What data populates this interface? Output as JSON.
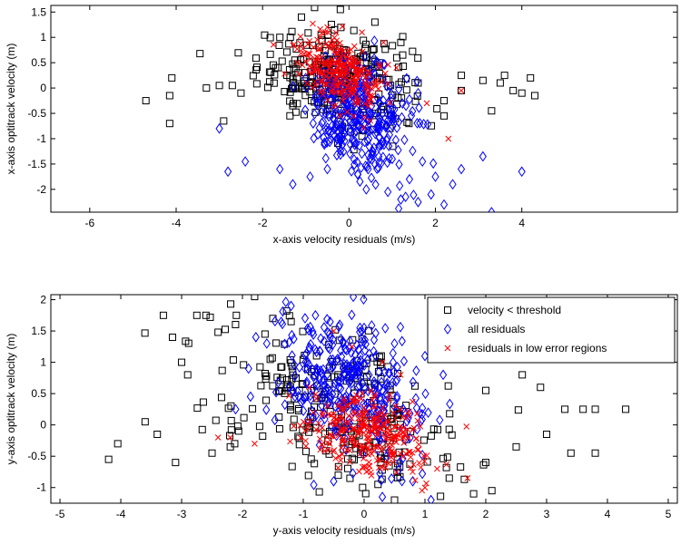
{
  "chart_data": [
    {
      "type": "scatter",
      "title": "",
      "xlabel": "x-axis velocity residuals (m/s)",
      "ylabel": "x-axis optitrack velocity (m)",
      "xlim": [
        -6.9,
        7.6
      ],
      "ylim": [
        -2.45,
        1.63
      ],
      "xticks": [
        -6,
        -4,
        -2,
        0,
        2,
        4
      ],
      "yticks": [
        -2,
        -1.5,
        -1,
        -0.5,
        0,
        0.5,
        1,
        1.5
      ],
      "grid": false,
      "legend": false,
      "series": [
        {
          "marker": "square",
          "color": "#000000",
          "cloud": {
            "cx": -0.3,
            "cy": 0.2,
            "sx": 0.9,
            "sy": 0.45,
            "slope": -0.1,
            "n": 280
          },
          "points": [
            [
              -4.7,
              -0.25
            ],
            [
              -4.1,
              0.2
            ],
            [
              -4.15,
              -0.15
            ],
            [
              -4.15,
              -0.7
            ],
            [
              -3.3,
              0.0
            ],
            [
              -3.0,
              0.05
            ],
            [
              -2.9,
              -0.65
            ],
            [
              -2.7,
              0.05
            ],
            [
              -2.5,
              -0.1
            ],
            [
              -1.6,
              1.0
            ],
            [
              -1.1,
              1.4
            ],
            [
              -0.2,
              1.55
            ],
            [
              0.6,
              1.3
            ],
            [
              1.2,
              0.9
            ],
            [
              1.6,
              0.1
            ],
            [
              2.2,
              -0.25
            ],
            [
              2.6,
              -0.05
            ],
            [
              3.1,
              0.15
            ],
            [
              3.3,
              -0.45
            ],
            [
              3.5,
              0.1
            ],
            [
              3.6,
              0.25
            ],
            [
              3.8,
              -0.05
            ],
            [
              4.0,
              -0.1
            ],
            [
              4.2,
              0.2
            ],
            [
              4.3,
              -0.15
            ],
            [
              2.2,
              -0.55
            ],
            [
              2.6,
              0.25
            ],
            [
              -1.3,
              -0.35
            ],
            [
              0.3,
              -0.95
            ]
          ]
        },
        {
          "marker": "diamond",
          "color": "#0000ff",
          "cloud": {
            "cx": 0.2,
            "cy": -0.55,
            "sx": 0.6,
            "sy": 0.55,
            "slope": -0.3,
            "n": 360
          },
          "points": [
            [
              -2.8,
              -1.65
            ],
            [
              -2.4,
              -1.45
            ],
            [
              -1.6,
              -1.6
            ],
            [
              -1.3,
              -1.9
            ],
            [
              -0.9,
              -1.75
            ],
            [
              -0.5,
              -1.6
            ],
            [
              0.2,
              -1.7
            ],
            [
              0.6,
              -1.5
            ],
            [
              0.9,
              -2.05
            ],
            [
              1.2,
              -2.2
            ],
            [
              1.6,
              -2.25
            ],
            [
              1.9,
              -2.1
            ],
            [
              2.2,
              -2.3
            ],
            [
              2.6,
              -1.6
            ],
            [
              3.1,
              -1.35
            ],
            [
              3.3,
              -2.45
            ],
            [
              4.0,
              -1.65
            ],
            [
              1.0,
              -1.4
            ],
            [
              1.4,
              -1.8
            ],
            [
              2.0,
              -1.75
            ],
            [
              2.4,
              -1.9
            ],
            [
              -3.0,
              -0.8
            ],
            [
              0.4,
              -2.0
            ],
            [
              1.7,
              -1.45
            ]
          ]
        },
        {
          "marker": "x",
          "color": "#ff0000",
          "cloud": {
            "cx": -0.2,
            "cy": 0.3,
            "sx": 0.5,
            "sy": 0.35,
            "slope": -0.3,
            "n": 260
          },
          "points": [
            [
              -0.5,
              1.2
            ],
            [
              0.3,
              1.1
            ],
            [
              0.8,
              0.9
            ],
            [
              1.1,
              0.4
            ],
            [
              -1.2,
              0.5
            ],
            [
              1.8,
              -0.3
            ],
            [
              2.3,
              -1.0
            ],
            [
              2.6,
              -0.05
            ]
          ]
        }
      ]
    },
    {
      "type": "scatter",
      "title": "",
      "xlabel": "y-axis velocity residuals (m/s)",
      "ylabel": "y-axis optitrack velocity (m)",
      "xlim": [
        -5.15,
        5.15
      ],
      "ylim": [
        -1.25,
        2.08
      ],
      "xticks": [
        -5,
        -4,
        -3,
        -2,
        -1,
        0,
        1,
        2,
        3,
        4,
        5
      ],
      "yticks": [
        -1,
        -0.5,
        0,
        0.5,
        1,
        1.5,
        2
      ],
      "grid": false,
      "legend": {
        "placement": "top-right",
        "entries": [
          {
            "label": "velocity < threshold",
            "marker": "square",
            "color": "#000000"
          },
          {
            "label": "all residuals",
            "marker": "diamond",
            "color": "#0000ff"
          },
          {
            "label": "residuals in low error regions",
            "marker": "x",
            "color": "#ff0000"
          }
        ]
      },
      "series": [
        {
          "name": "velocity < threshold",
          "marker": "square",
          "color": "#000000",
          "cloud": {
            "cx": -0.5,
            "cy": 0.3,
            "sx": 1.0,
            "sy": 0.6,
            "slope": -0.35,
            "n": 280
          },
          "points": [
            [
              -4.2,
              -0.55
            ],
            [
              -4.05,
              -0.3
            ],
            [
              -3.6,
              0.05
            ],
            [
              -3.4,
              -0.15
            ],
            [
              -3.3,
              1.75
            ],
            [
              -3.15,
              1.4
            ],
            [
              -3.0,
              1.0
            ],
            [
              -2.9,
              0.8
            ],
            [
              -2.75,
              1.75
            ],
            [
              -2.6,
              1.75
            ],
            [
              -2.1,
              1.75
            ],
            [
              -1.8,
              2.05
            ],
            [
              -1.5,
              1.7
            ],
            [
              -1.2,
              1.65
            ],
            [
              -3.1,
              -0.6
            ],
            [
              -2.5,
              -0.45
            ],
            [
              -2.2,
              -0.35
            ],
            [
              2.0,
              0.55
            ],
            [
              2.3,
              1.05
            ],
            [
              2.6,
              0.8
            ],
            [
              2.9,
              0.6
            ],
            [
              3.0,
              -0.15
            ],
            [
              3.3,
              0.25
            ],
            [
              3.6,
              0.25
            ],
            [
              3.8,
              0.25
            ],
            [
              4.3,
              0.25
            ],
            [
              3.4,
              -0.45
            ],
            [
              3.8,
              -0.45
            ],
            [
              2.5,
              -0.35
            ],
            [
              2.0,
              -0.6
            ],
            [
              1.8,
              -1.1
            ],
            [
              2.1,
              -1.05
            ],
            [
              0.5,
              -1.2
            ],
            [
              1.4,
              -0.85
            ]
          ]
        },
        {
          "name": "all residuals",
          "marker": "diamond",
          "color": "#0000ff",
          "cloud": {
            "cx": -0.3,
            "cy": 0.7,
            "sx": 0.6,
            "sy": 0.55,
            "slope": -0.4,
            "n": 340
          },
          "points": [
            [
              -1.2,
              1.9
            ],
            [
              -0.8,
              1.75
            ],
            [
              -0.4,
              1.6
            ],
            [
              0.0,
              1.55
            ],
            [
              0.5,
              1.3
            ],
            [
              1.0,
              1.1
            ],
            [
              1.3,
              0.8
            ],
            [
              -1.6,
              1.3
            ],
            [
              -1.9,
              0.9
            ],
            [
              0.8,
              -0.9
            ],
            [
              0.3,
              -1.15
            ],
            [
              1.1,
              -1.2
            ],
            [
              -0.5,
              -0.9
            ]
          ]
        },
        {
          "name": "residuals in low error regions",
          "marker": "x",
          "color": "#ff0000",
          "cloud": {
            "cx": 0.1,
            "cy": -0.15,
            "sx": 0.55,
            "sy": 0.3,
            "slope": -0.15,
            "n": 300
          },
          "points": [
            [
              -0.5,
              1.5
            ],
            [
              -0.2,
              1.25
            ],
            [
              0.3,
              1.0
            ],
            [
              0.6,
              0.8
            ],
            [
              -0.9,
              0.6
            ],
            [
              -2.4,
              -0.2
            ],
            [
              -2.2,
              -0.2
            ],
            [
              -1.8,
              -0.3
            ],
            [
              1.2,
              -0.7
            ],
            [
              1.7,
              -0.85
            ],
            [
              1.0,
              -1.0
            ]
          ]
        }
      ]
    }
  ]
}
